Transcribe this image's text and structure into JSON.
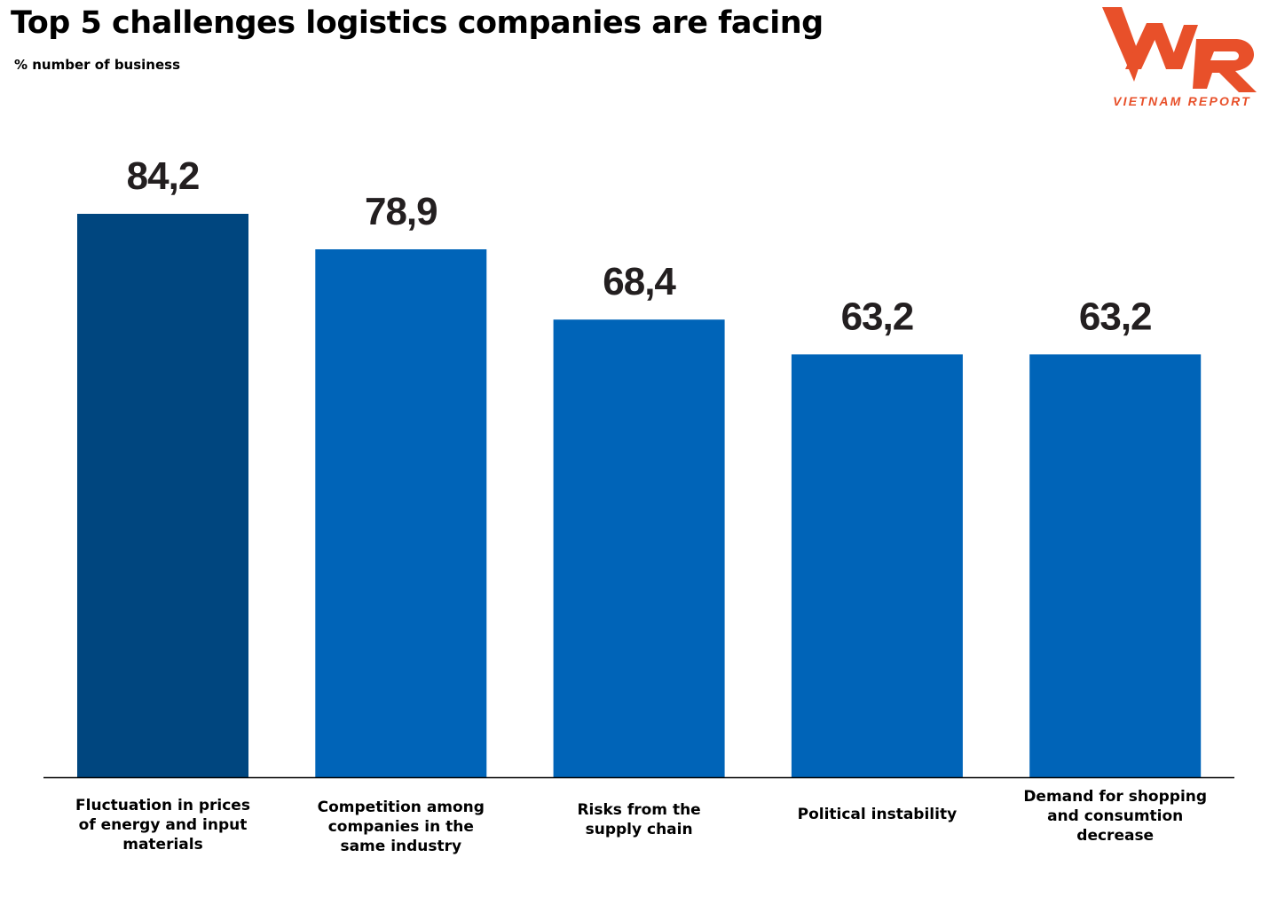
{
  "header": {
    "title": "Top 5 challenges logistics companies are facing",
    "subtitle": "% number of business"
  },
  "logo": {
    "mark": "VNR",
    "name": "VIETNAM REPORT",
    "color": "#e8502a"
  },
  "colors": {
    "bar_highlight": "#00467f",
    "bar_default": "#0064b8",
    "axis": "#000000"
  },
  "chart_data": {
    "type": "bar",
    "title": "Top 5 challenges logistics companies are facing",
    "subtitle": "% number of business",
    "categories": [
      "Fluctuation in prices of energy and input materials",
      "Competition among companies in the same industry",
      "Risks from the supply chain",
      "Political instability",
      "Demand for shopping and consumtion decrease"
    ],
    "values": [
      84.2,
      78.9,
      68.4,
      63.2,
      63.2
    ],
    "value_labels": [
      "84,2",
      "78,9",
      "68,4",
      "63,2",
      "63,2"
    ],
    "xlabel": "",
    "ylabel": "",
    "ylim": [
      0,
      100
    ],
    "grid": false,
    "legend": "none"
  }
}
